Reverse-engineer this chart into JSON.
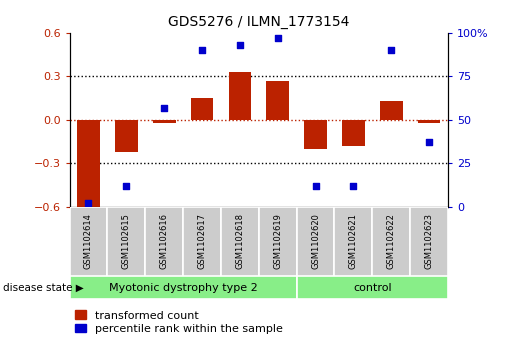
{
  "title": "GDS5276 / ILMN_1773154",
  "samples": [
    "GSM1102614",
    "GSM1102615",
    "GSM1102616",
    "GSM1102617",
    "GSM1102618",
    "GSM1102619",
    "GSM1102620",
    "GSM1102621",
    "GSM1102622",
    "GSM1102623"
  ],
  "red_values": [
    -0.6,
    -0.22,
    -0.02,
    0.15,
    0.33,
    0.27,
    -0.2,
    -0.18,
    0.13,
    -0.02
  ],
  "blue_values": [
    2,
    12,
    57,
    90,
    93,
    97,
    12,
    12,
    90,
    37
  ],
  "groups": [
    {
      "label": "Myotonic dystrophy type 2",
      "start": 0,
      "end": 5
    },
    {
      "label": "control",
      "start": 6,
      "end": 9
    }
  ],
  "ylim_left": [
    -0.6,
    0.6
  ],
  "ylim_right": [
    0,
    100
  ],
  "yticks_left": [
    -0.6,
    -0.3,
    0.0,
    0.3,
    0.6
  ],
  "yticks_right": [
    0,
    25,
    50,
    75,
    100
  ],
  "ytick_labels_right": [
    "0",
    "25",
    "50",
    "75",
    "100%"
  ],
  "hlines_dotted": [
    0.3,
    -0.3
  ],
  "hline_red": 0.0,
  "red_color": "#bb2200",
  "blue_color": "#0000cc",
  "bar_width": 0.6,
  "group_color": "#88ee88",
  "sample_bg_color": "#cccccc",
  "legend_red": "transformed count",
  "legend_blue": "percentile rank within the sample",
  "disease_state_label": "disease state"
}
